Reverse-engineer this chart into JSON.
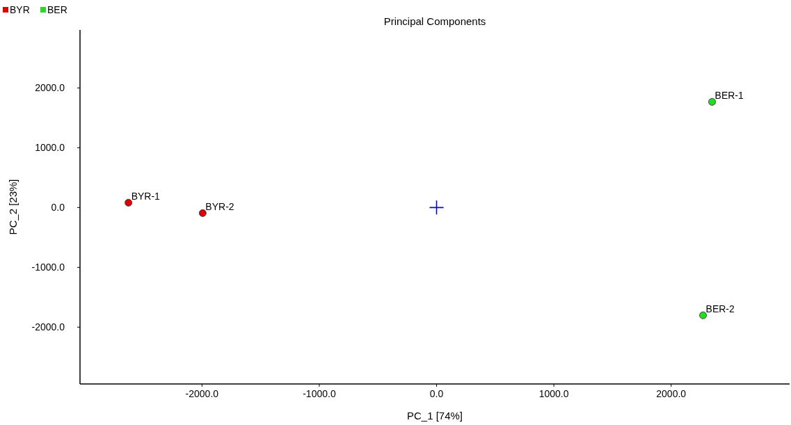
{
  "chart_data": {
    "type": "scatter",
    "title": "Principal Components",
    "xlabel": "PC_1 [74%]",
    "ylabel": "PC_2 [23%]",
    "xlim": [
      -3040,
      3010
    ],
    "ylim": [
      -2950,
      2970
    ],
    "xticks": [
      {
        "value": -2000,
        "label": "-2000.0"
      },
      {
        "value": -1000,
        "label": "-1000.0"
      },
      {
        "value": 0,
        "label": "0.0"
      },
      {
        "value": 1000,
        "label": "1000.0"
      },
      {
        "value": 2000,
        "label": "2000.0"
      }
    ],
    "yticks": [
      {
        "value": -2000,
        "label": "-2000.0"
      },
      {
        "value": -1000,
        "label": "-1000.0"
      },
      {
        "value": 0,
        "label": "0.0"
      },
      {
        "value": 1000,
        "label": "1000.0"
      },
      {
        "value": 2000,
        "label": "2000.0"
      }
    ],
    "grid": false,
    "legend": "top left",
    "marker": "circle",
    "series": [
      {
        "name": "BYR",
        "color": "#e00000",
        "x": [
          -2627,
          -1994
        ],
        "values": [
          81,
          -93
        ]
      },
      {
        "name": "BER",
        "color": "#22dd22",
        "x": [
          2349,
          2272
        ],
        "values": [
          1767,
          -1802
        ]
      },
      {
        "color": "#0000ff",
        "marker": "cross",
        "x": [
          0
        ],
        "values": [
          0
        ]
      }
    ],
    "annotations": [
      {
        "text": "BYR-1",
        "x": -2627,
        "y": 81
      },
      {
        "text": "BYR-2",
        "x": -1994,
        "y": -93
      },
      {
        "text": "BER-1",
        "x": 2349,
        "y": 1767
      },
      {
        "text": "BER-2",
        "x": 2272,
        "y": -1802
      }
    ]
  }
}
